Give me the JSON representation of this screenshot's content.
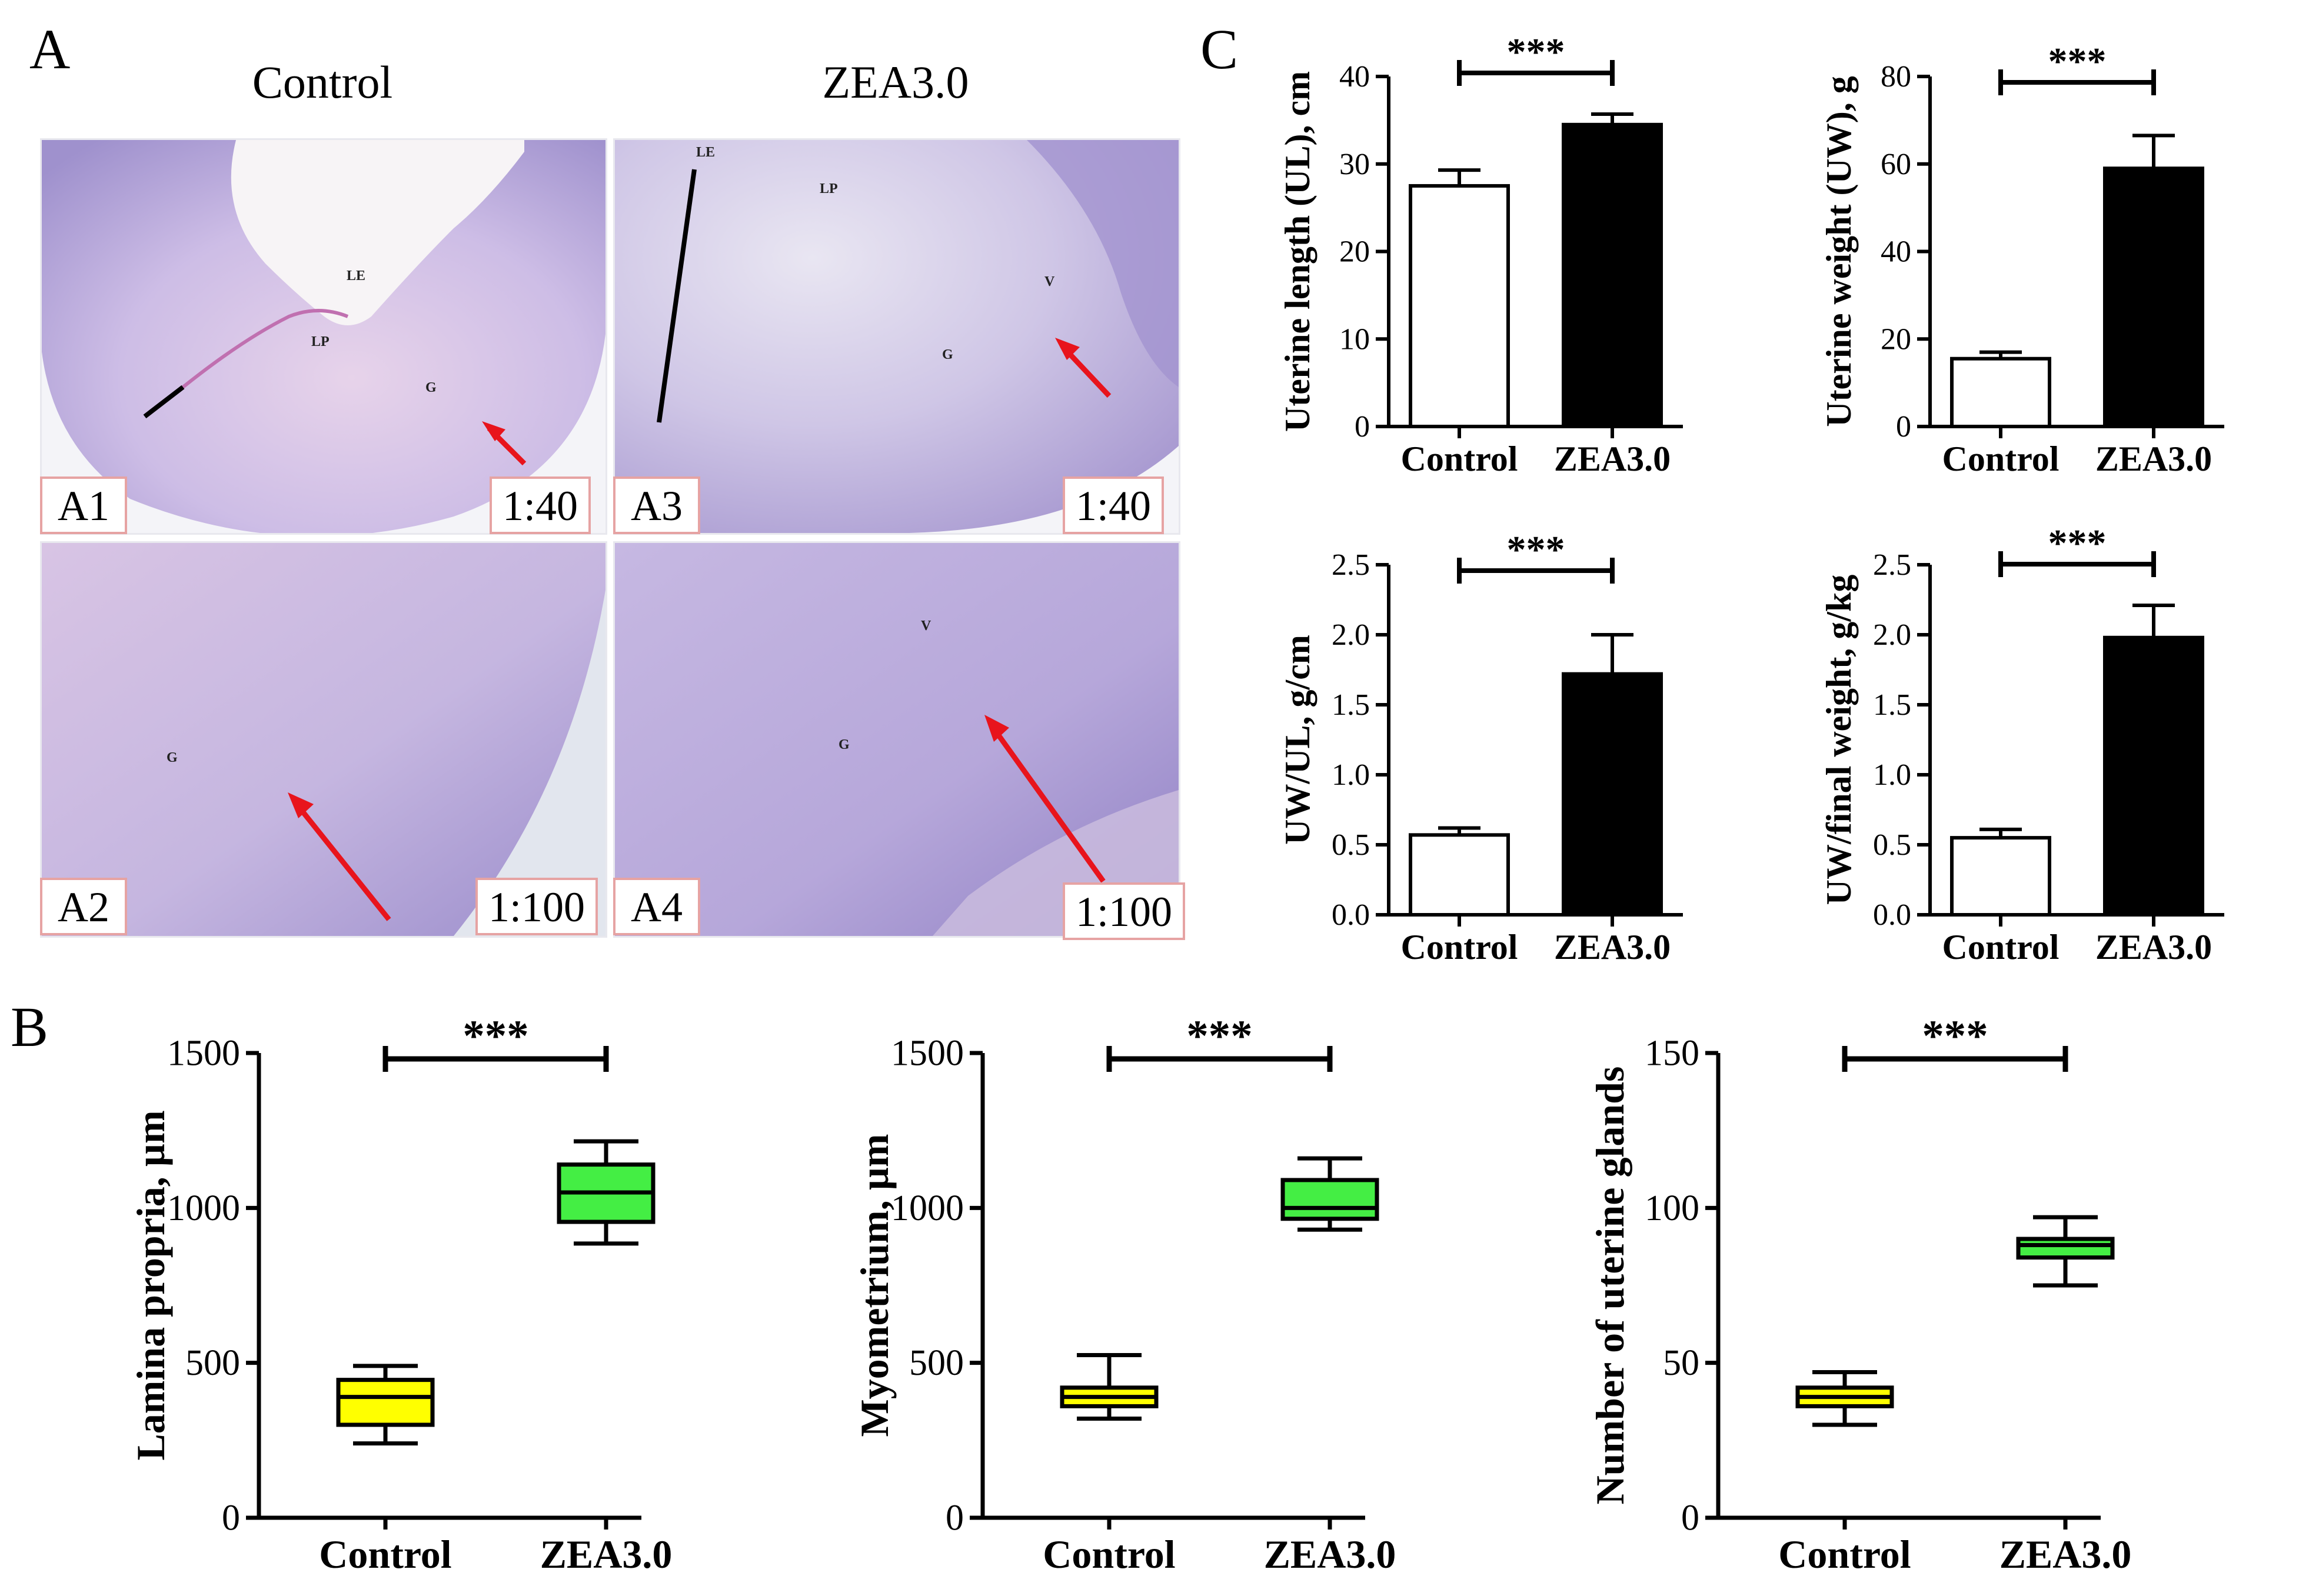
{
  "figure": {
    "panel_a_letter": "A",
    "panel_b_letter": "B",
    "panel_c_letter": "C",
    "column_heads": [
      "Control",
      "ZEA3.0"
    ]
  },
  "micrographs": [
    {
      "id": "A1",
      "label": "A1",
      "magnification": "1:40",
      "tissue_labels": [
        "LE",
        "LP",
        "G"
      ]
    },
    {
      "id": "A3",
      "label": "A3",
      "magnification": "1:40",
      "tissue_labels": [
        "LE",
        "LP",
        "V",
        "G"
      ]
    },
    {
      "id": "A2",
      "label": "A2",
      "magnification": "1:100",
      "tissue_labels": [
        "G"
      ]
    },
    {
      "id": "A4",
      "label": "A4",
      "magnification": "1:100",
      "tissue_labels": [
        "V",
        "G"
      ]
    }
  ],
  "colors": {
    "control_bar": "#ffffff",
    "zea_bar": "#000000",
    "control_box": "#ffff00",
    "zea_box": "#44ee44",
    "arrow": "#e8141c",
    "tissue": "#b7a4d8"
  },
  "chart_data": [
    {
      "id": "C1",
      "type": "bar",
      "title": "",
      "categories": [
        "Control",
        "ZEA3.0"
      ],
      "values": [
        27.5,
        34.5
      ],
      "errors": [
        1.8,
        1.2
      ],
      "ylabel": "Uterine length (UL), cm",
      "xlabel": "",
      "ylim": [
        0,
        40
      ],
      "yticks": [
        0,
        10,
        20,
        30,
        40
      ],
      "tick_labels": [
        "0",
        "10",
        "20",
        "30",
        "40"
      ],
      "significance": "***"
    },
    {
      "id": "C2",
      "type": "bar",
      "title": "",
      "categories": [
        "Control",
        "ZEA3.0"
      ],
      "values": [
        15.5,
        59
      ],
      "errors": [
        1.5,
        7.5
      ],
      "ylabel": "Uterine weight (UW), g",
      "xlabel": "",
      "ylim": [
        0,
        80
      ],
      "yticks": [
        0,
        20,
        40,
        60,
        80
      ],
      "tick_labels": [
        "0",
        "20",
        "40",
        "60",
        "80"
      ],
      "significance": "***"
    },
    {
      "id": "C3",
      "type": "bar",
      "title": "",
      "categories": [
        "Control",
        "ZEA3.0"
      ],
      "values": [
        0.57,
        1.72
      ],
      "errors": [
        0.05,
        0.28
      ],
      "ylabel": "UW/UL, g/cm",
      "xlabel": "",
      "ylim": [
        0,
        2.5
      ],
      "yticks": [
        0,
        0.5,
        1,
        1.5,
        2,
        2.5
      ],
      "tick_labels": [
        "0.0",
        "0.5",
        "1.0",
        "1.5",
        "2.0",
        "2.5"
      ],
      "significance": "***"
    },
    {
      "id": "C4",
      "type": "bar",
      "title": "",
      "categories": [
        "Control",
        "ZEA3.0"
      ],
      "values": [
        0.55,
        1.98
      ],
      "errors": [
        0.06,
        0.23
      ],
      "ylabel": "UW/final weight, g/kg",
      "xlabel": "",
      "ylim": [
        0,
        2.5
      ],
      "yticks": [
        0,
        0.5,
        1,
        1.5,
        2,
        2.5
      ],
      "tick_labels": [
        "0.0",
        "0.5",
        "1.0",
        "1.5",
        "2.0",
        "2.5"
      ],
      "significance": "***"
    },
    {
      "id": "B1",
      "type": "box",
      "title": "",
      "categories": [
        "Control",
        "ZEA3.0"
      ],
      "boxes": [
        {
          "min": 240,
          "q1": 300,
          "median": 390,
          "q3": 445,
          "max": 490
        },
        {
          "min": 885,
          "q1": 955,
          "median": 1050,
          "q3": 1140,
          "max": 1215
        }
      ],
      "ylabel": "Lamina propria,  µm",
      "xlabel": "",
      "ylim": [
        0,
        1500
      ],
      "yticks": [
        0,
        500,
        1000,
        1500
      ],
      "tick_labels": [
        "0",
        "500",
        "1000",
        "1500"
      ],
      "significance": "***"
    },
    {
      "id": "B2",
      "type": "box",
      "title": "",
      "categories": [
        "Control",
        "ZEA3.0"
      ],
      "boxes": [
        {
          "min": 320,
          "q1": 360,
          "median": 390,
          "q3": 420,
          "max": 525
        },
        {
          "min": 930,
          "q1": 965,
          "median": 1000,
          "q3": 1090,
          "max": 1160
        }
      ],
      "ylabel": "Myometrium,  µm",
      "xlabel": "",
      "ylim": [
        0,
        1500
      ],
      "yticks": [
        0,
        500,
        1000,
        1500
      ],
      "tick_labels": [
        "0",
        "500",
        "1000",
        "1500"
      ],
      "significance": "***"
    },
    {
      "id": "B3",
      "type": "box",
      "title": "",
      "categories": [
        "Control",
        "ZEA3.0"
      ],
      "boxes": [
        {
          "min": 30,
          "q1": 36,
          "median": 39,
          "q3": 42,
          "max": 47
        },
        {
          "min": 75,
          "q1": 84,
          "median": 88,
          "q3": 90,
          "max": 97
        }
      ],
      "ylabel": "Number of uterine glands",
      "xlabel": "",
      "ylim": [
        0,
        150
      ],
      "yticks": [
        0,
        50,
        100,
        150
      ],
      "tick_labels": [
        "0",
        "50",
        "100",
        "150"
      ],
      "significance": "***"
    }
  ]
}
